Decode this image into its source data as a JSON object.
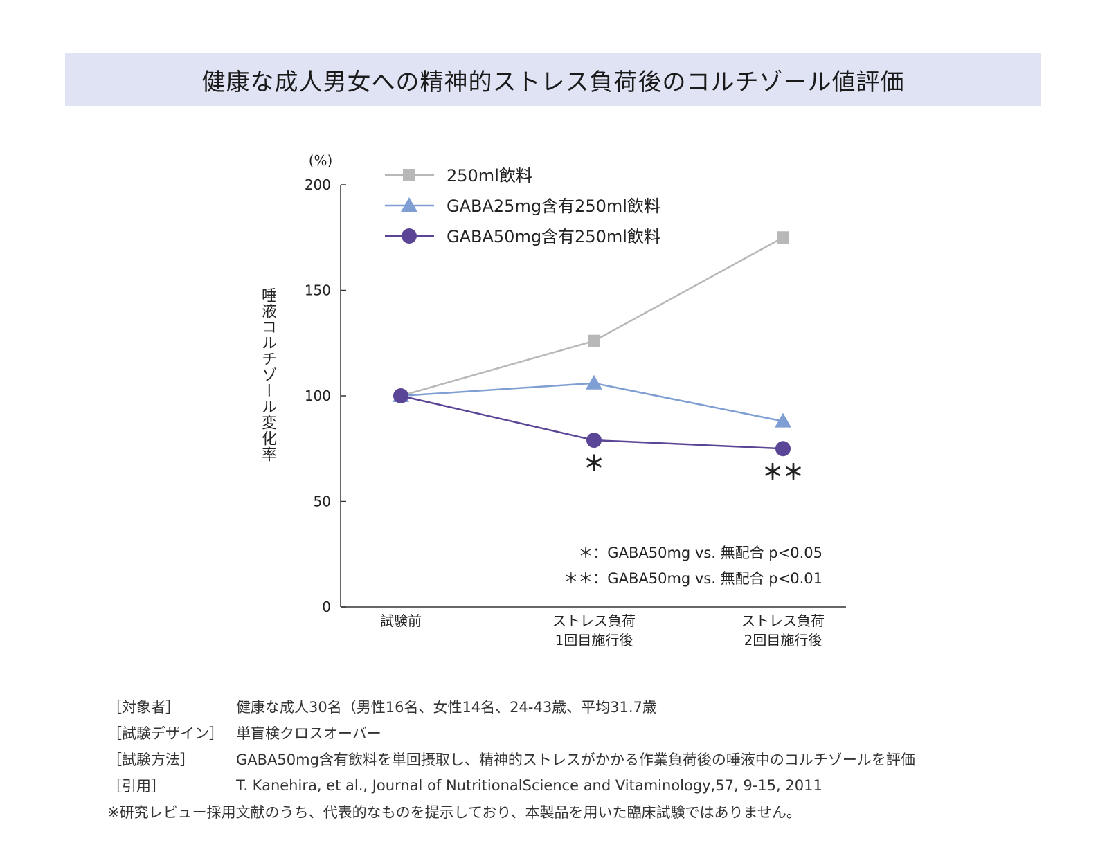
{
  "header": {
    "title": "健康な成人男女への精神的ストレス負荷後のコルチゾール値評価"
  },
  "chart_data": {
    "type": "line",
    "title": "",
    "ylabel": "唾液コルチゾール変化率",
    "yunit": "(%)",
    "ylim": [
      0,
      200
    ],
    "yticks": [
      0,
      50,
      100,
      150,
      200
    ],
    "categories": [
      [
        "試験前"
      ],
      [
        "ストレス負荷",
        "1回目施行後"
      ],
      [
        "ストレス負荷",
        "2回目施行後"
      ]
    ],
    "legend_position": "top-left",
    "series": [
      {
        "name": "250ml飲料",
        "values": [
          100,
          126,
          175
        ],
        "color": "#b8b8b8",
        "marker": "square"
      },
      {
        "name": "GABA25mg含有250ml飲料",
        "values": [
          100,
          106,
          88
        ],
        "color": "#7f9ed3",
        "marker": "triangle"
      },
      {
        "name": "GABA50mg含有250ml飲料",
        "values": [
          100,
          79,
          75
        ],
        "color": "#5a4596",
        "marker": "circle"
      }
    ],
    "significance_marks": [
      {
        "category_index": 1,
        "label": "＊"
      },
      {
        "category_index": 2,
        "label": "＊＊"
      }
    ],
    "notes": [
      "＊：GABA50mg vs. 無配合 p<0.05",
      "＊＊：GABA50mg vs. 無配合 p<0.01"
    ]
  },
  "footer": {
    "rows": [
      {
        "label": "［対象者］",
        "value": "健康な成人30名（男性16名、女性14名、24-43歳、平均31.7歳"
      },
      {
        "label": "［試験デザイン］",
        "value": "単盲検クロスオーバー"
      },
      {
        "label": "［試験方法］",
        "value": "GABA50mg含有飲料を単回摂取し、精神的ストレスがかかる作業負荷後の唾液中のコルチゾールを評価"
      },
      {
        "label": "［引用］",
        "value": "T. Kanehira, et al., Journal of NutritionalScience and Vitaminology,57, 9-15, 2011"
      }
    ],
    "note": "※研究レビュー採用文献のうち、代表的なものを提示しており、本製品を用いた臨床試験ではありません。"
  }
}
